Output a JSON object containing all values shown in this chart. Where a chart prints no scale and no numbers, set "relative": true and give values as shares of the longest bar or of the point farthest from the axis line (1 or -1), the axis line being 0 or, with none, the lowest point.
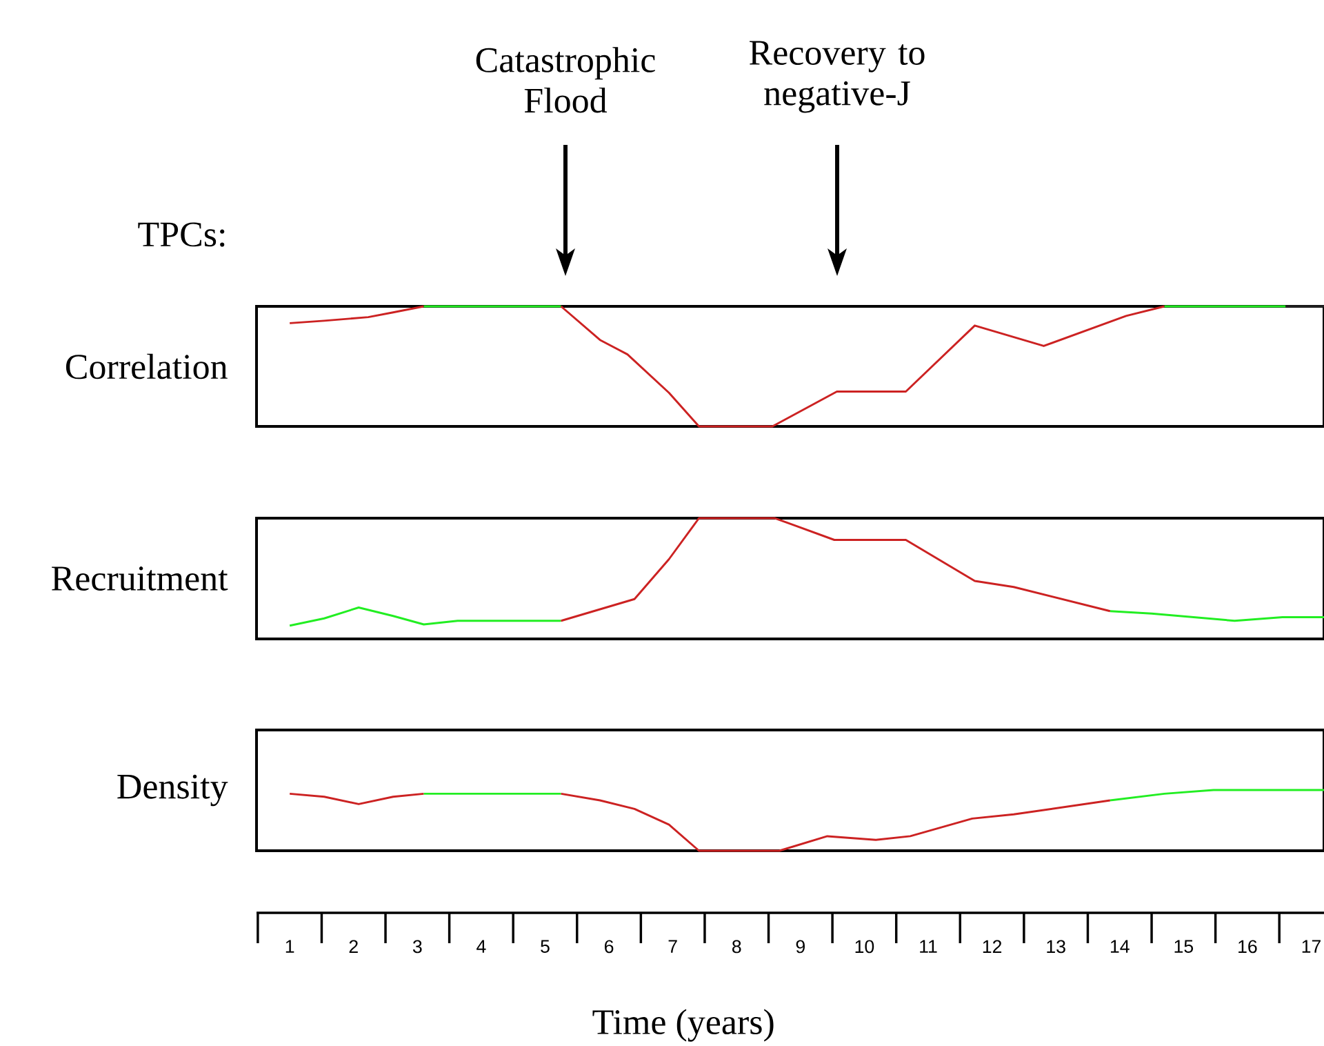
{
  "chart_data": [
    {
      "type": "line",
      "ylabel": "Correlation",
      "relative": true,
      "xlim": [
        0.48,
        17.2
      ],
      "tick_labels": false,
      "annotations": [
        "TPCs:",
        "Catastrophic Flood",
        "Recovery to negative-J"
      ],
      "series": [
        {
          "color": "#cc2222",
          "x": [
            1,
            1.54,
            2.23,
            2.62,
            3.1
          ],
          "values": [
            0.86,
            0.88,
            0.91,
            0.95,
            1
          ]
        },
        {
          "color": "#22ee22",
          "x": [
            3.1,
            5.25
          ],
          "values": [
            1,
            1
          ]
        },
        {
          "color": "#cc2222",
          "x": [
            5.25,
            5.86,
            6.29,
            6.94,
            7.41,
            8.56,
            9.57,
            10.65,
            11.73,
            12.81,
            14.1,
            14.7
          ],
          "values": [
            1,
            0.72,
            0.6,
            0.28,
            0,
            0,
            0.29,
            0.29,
            0.84,
            0.67,
            0.92,
            1
          ]
        },
        {
          "color": "#22ee22",
          "x": [
            14.7,
            16.6
          ],
          "values": [
            1,
            1
          ]
        },
        {
          "color": "#222222",
          "x": [
            16.6,
            17.2
          ],
          "values": [
            1,
            1
          ]
        }
      ]
    },
    {
      "type": "line",
      "ylabel": "Recruitment",
      "relative": true,
      "xlim": [
        0.48,
        17.2
      ],
      "tick_labels": false,
      "series": [
        {
          "color": "#22ee22",
          "x": [
            1,
            1.54,
            2.08,
            2.62,
            3.1,
            3.63,
            5.25
          ],
          "values": [
            0.11,
            0.17,
            0.26,
            0.19,
            0.12,
            0.15,
            0.15
          ]
        },
        {
          "color": "#cc2222",
          "x": [
            5.25,
            6.4,
            6.94,
            7.41,
            8.6,
            9.53,
            10.65,
            11.73,
            12.34,
            13.85
          ],
          "values": [
            0.15,
            0.33,
            0.66,
            1,
            1,
            0.82,
            0.82,
            0.48,
            0.43,
            0.23
          ]
        },
        {
          "color": "#22ee22",
          "x": [
            13.85,
            14.5,
            15.8,
            16.55,
            17.2
          ],
          "values": [
            0.23,
            0.21,
            0.15,
            0.18,
            0.18
          ]
        }
      ]
    },
    {
      "type": "line",
      "ylabel": "Density",
      "xlabel": "Time (years)",
      "relative": true,
      "xlim": [
        0.48,
        17.2
      ],
      "tick_labels": "x",
      "xticks": [
        1,
        2,
        3,
        4,
        5,
        6,
        7,
        8,
        9,
        10,
        11,
        12,
        13,
        14,
        15,
        16,
        17
      ],
      "series": [
        {
          "color": "#cc2222",
          "x": [
            1,
            1.54,
            2.08,
            2.62,
            3.1
          ],
          "values": [
            0.94,
            0.89,
            0.77,
            0.89,
            0.94
          ]
        },
        {
          "color": "#22ee22",
          "x": [
            3.1,
            5.25
          ],
          "values": [
            0.94,
            0.94
          ]
        },
        {
          "color": "#cc2222",
          "x": [
            5.25,
            5.86,
            6.4,
            6.94,
            7.41,
            8.67,
            9.42,
            10.18,
            10.72,
            11.69,
            12.34,
            13.85
          ],
          "values": [
            0.94,
            0.83,
            0.69,
            0.43,
            0,
            0,
            0.24,
            0.18,
            0.24,
            0.53,
            0.6,
            0.83
          ]
        },
        {
          "color": "#22ee22",
          "x": [
            13.85,
            14.7,
            15.47,
            17.2
          ],
          "values": [
            0.83,
            0.94,
            1,
            1
          ]
        }
      ]
    }
  ]
}
